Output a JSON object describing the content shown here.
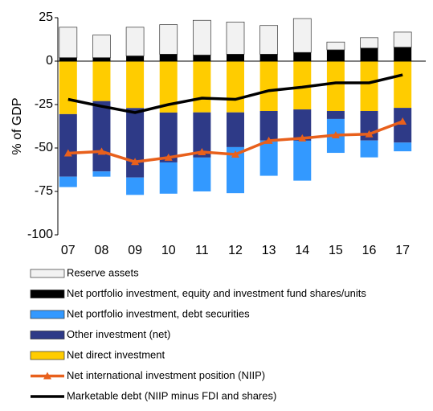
{
  "chart_data": {
    "type": "bar",
    "stacked": true,
    "y_label": "% of GDP",
    "categories": [
      "07",
      "08",
      "09",
      "10",
      "11",
      "12",
      "13",
      "14",
      "15",
      "16",
      "17"
    ],
    "ylim": [
      -100,
      25
    ],
    "yticks": [
      25,
      0,
      -25,
      -50,
      -75,
      -100
    ],
    "grid": false,
    "legend": "bottom",
    "series": [
      {
        "name": "Reserve assets",
        "type": "bar",
        "color": "#f2f2f2",
        "values": [
          17.5,
          13,
          16.5,
          17,
          20,
          18.5,
          16.5,
          19.5,
          4.5,
          6,
          8.7
        ]
      },
      {
        "name": "Net portfolio investment, equity and investment fund shares/units",
        "type": "bar",
        "color": "#000000",
        "values": [
          2,
          2,
          3,
          4,
          3.5,
          4,
          4,
          5,
          6.5,
          7.5,
          8
        ]
      },
      {
        "name": "Net portfolio investment, debt securities",
        "type": "bar",
        "color": "#3399ff",
        "values": [
          -6,
          -3,
          -10,
          -18,
          -19.5,
          -26.5,
          -20.3,
          -23,
          -19.5,
          -9.7,
          -5
        ]
      },
      {
        "name": "Other investment (net)",
        "type": "bar",
        "color": "#2e3a87",
        "values": [
          -36,
          -40.5,
          -40,
          -28.7,
          -26,
          -20,
          -17,
          -18,
          -4.6,
          -17,
          -20
        ]
      },
      {
        "name": "Net direct investment",
        "type": "bar",
        "color": "#ffcc00",
        "values": [
          -30.5,
          -23,
          -27,
          -29.6,
          -29.5,
          -29.5,
          -28.7,
          -27.8,
          -28.7,
          -28.7,
          -26.9
        ]
      },
      {
        "name": "Net international investment position (NIIP)",
        "type": "line",
        "marker": "triangle",
        "color": "#e8601c",
        "values": [
          -53,
          -52,
          -58,
          -55.5,
          -52.3,
          -53.7,
          -45.8,
          -44.4,
          -42.6,
          -42,
          -34.7
        ]
      },
      {
        "name": "Marketable debt (NIIP minus FDI and shares)",
        "type": "line",
        "color": "#000000",
        "values": [
          -22,
          -26,
          -29.6,
          -25,
          -21.3,
          -22,
          -17,
          -15,
          -12.5,
          -12.5,
          -7.9
        ]
      }
    ]
  }
}
